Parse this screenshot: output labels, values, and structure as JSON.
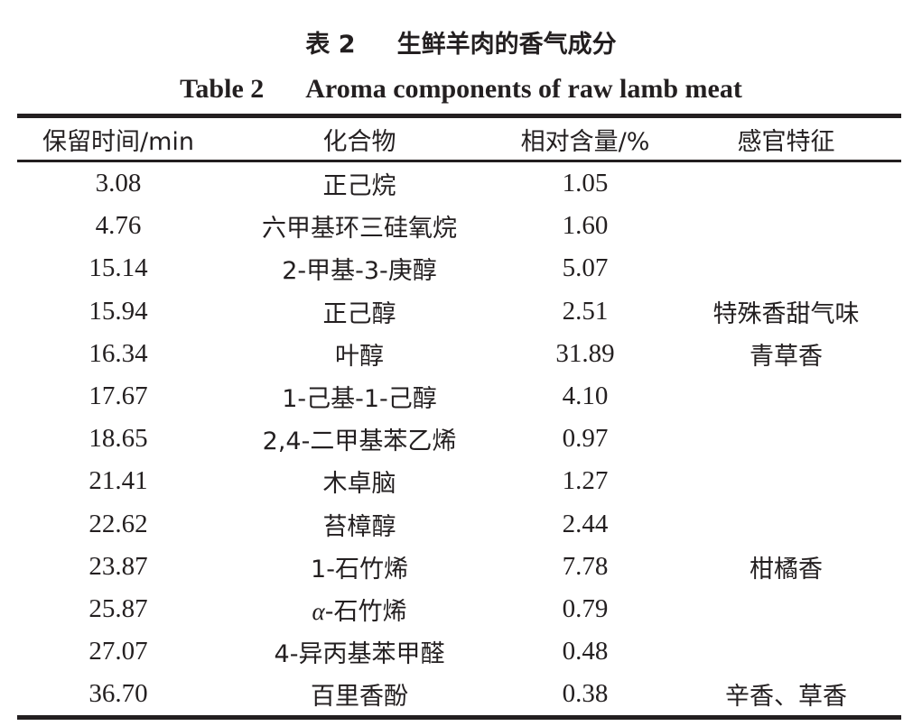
{
  "caption": {
    "cn_number": "表 2",
    "cn_title": "生鲜羊肉的香气成分",
    "en_number": "Table 2",
    "en_title": "Aroma components of raw lamb meat"
  },
  "headers": [
    "保留时间/min",
    "化合物",
    "相对含量/%",
    "感官特征"
  ],
  "rows": [
    {
      "time": "3.08",
      "compound": "正己烷",
      "content": "1.05",
      "sensory": ""
    },
    {
      "time": "4.76",
      "compound": "六甲基环三硅氧烷",
      "content": "1.60",
      "sensory": ""
    },
    {
      "time": "15.14",
      "compound": "2-甲基-3-庚醇",
      "content": "5.07",
      "sensory": ""
    },
    {
      "time": "15.94",
      "compound": "正己醇",
      "content": "2.51",
      "sensory": "特殊香甜气味"
    },
    {
      "time": "16.34",
      "compound": "叶醇",
      "content": "31.89",
      "sensory": "青草香"
    },
    {
      "time": "17.67",
      "compound": "1-己基-1-己醇",
      "content": "4.10",
      "sensory": ""
    },
    {
      "time": "18.65",
      "compound": "2,4-二甲基苯乙烯",
      "content": "0.97",
      "sensory": ""
    },
    {
      "time": "21.41",
      "compound": "木卓脑",
      "content": "1.27",
      "sensory": ""
    },
    {
      "time": "22.62",
      "compound": "苔樟醇",
      "content": "2.44",
      "sensory": ""
    },
    {
      "time": "23.87",
      "compound": "1-石竹烯",
      "content": "7.78",
      "sensory": "柑橘香"
    },
    {
      "time": "25.87",
      "compound": "α-石竹烯",
      "content": "0.79",
      "sensory": ""
    },
    {
      "time": "27.07",
      "compound": "4-异丙基苯甲醛",
      "content": "0.48",
      "sensory": ""
    },
    {
      "time": "36.70",
      "compound": "百里香酚",
      "content": "0.38",
      "sensory": "辛香、草香"
    }
  ]
}
